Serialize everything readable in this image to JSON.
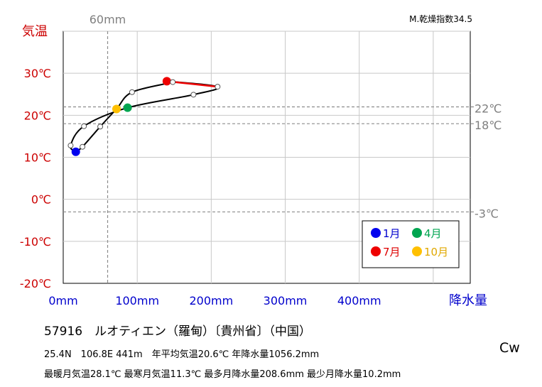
{
  "chart_data": {
    "type": "line",
    "title": "",
    "y_axis_title": "気温",
    "x_axis_title": "降水量",
    "dryness_index": "M.乾燥指数34.5",
    "xlim": [
      0,
      550
    ],
    "ylim": [
      -20,
      40
    ],
    "y_ticks": [
      {
        "value": 30,
        "label": "30℃"
      },
      {
        "value": 20,
        "label": "20℃"
      },
      {
        "value": 10,
        "label": "10℃"
      },
      {
        "value": 0,
        "label": "0℃"
      },
      {
        "value": -10,
        "label": "-10℃"
      },
      {
        "value": -20,
        "label": "-20℃"
      }
    ],
    "x_ticks": [
      {
        "value": 0,
        "label": "0mm"
      },
      {
        "value": 100,
        "label": "100mm"
      },
      {
        "value": 200,
        "label": "200mm"
      },
      {
        "value": 300,
        "label": "300mm"
      },
      {
        "value": 400,
        "label": "400mm"
      }
    ],
    "reference_lines": [
      {
        "axis": "x",
        "value": 60,
        "label": "60mm"
      },
      {
        "axis": "y",
        "value": 22,
        "label": "22℃"
      },
      {
        "axis": "y",
        "value": 18,
        "label": "18℃"
      },
      {
        "axis": "y",
        "value": -3,
        "label": "-3℃"
      }
    ],
    "months": [
      {
        "month": 1,
        "precip": 17,
        "temp": 11.3
      },
      {
        "month": 2,
        "precip": 10,
        "temp": 12.8
      },
      {
        "month": 3,
        "precip": 28,
        "temp": 17.4
      },
      {
        "month": 4,
        "precip": 87,
        "temp": 21.8
      },
      {
        "month": 5,
        "precip": 176,
        "temp": 24.9
      },
      {
        "month": 6,
        "precip": 208.6,
        "temp": 26.8
      },
      {
        "month": 7,
        "precip": 140,
        "temp": 28.1
      },
      {
        "month": 8,
        "precip": 148,
        "temp": 27.9
      },
      {
        "month": 9,
        "precip": 93,
        "temp": 25.5
      },
      {
        "month": 10,
        "precip": 72,
        "temp": 21.5
      },
      {
        "month": 11,
        "precip": 50,
        "temp": 17.3
      },
      {
        "month": 12,
        "precip": 26,
        "temp": 12.5
      }
    ],
    "legend": [
      {
        "month": 1,
        "label": "1月",
        "color": "#0000ee",
        "text_color": "#0000cc"
      },
      {
        "month": 4,
        "label": "4月",
        "color": "#00a550",
        "text_color": "#00a550"
      },
      {
        "month": 7,
        "label": "7月",
        "color": "#ee0000",
        "text_color": "#dd0000"
      },
      {
        "month": 10,
        "label": "10月",
        "color": "#ffc000",
        "text_color": "#e0a800"
      }
    ],
    "colors": {
      "temperature_axis": "#cc0000",
      "precipitation_axis": "#0000cc",
      "summer_segment": "#ee0000",
      "reference_line": "#8c8c8c",
      "grid": "#c8c8c8"
    },
    "grid": true,
    "legend_placement": "bottom-right"
  },
  "station": {
    "title": "57916　ルオティエン（羅甸）〔貴州省〕（中国）",
    "line1": "25.4N　106.8E 441m　年平均気温20.6℃ 年降水量1056.2mm",
    "line2": "最暖月気温28.1℃ 最寒月気温11.3℃ 最多月降水量208.6mm 最少月降水量10.2mm",
    "climate_type": "Cw"
  }
}
